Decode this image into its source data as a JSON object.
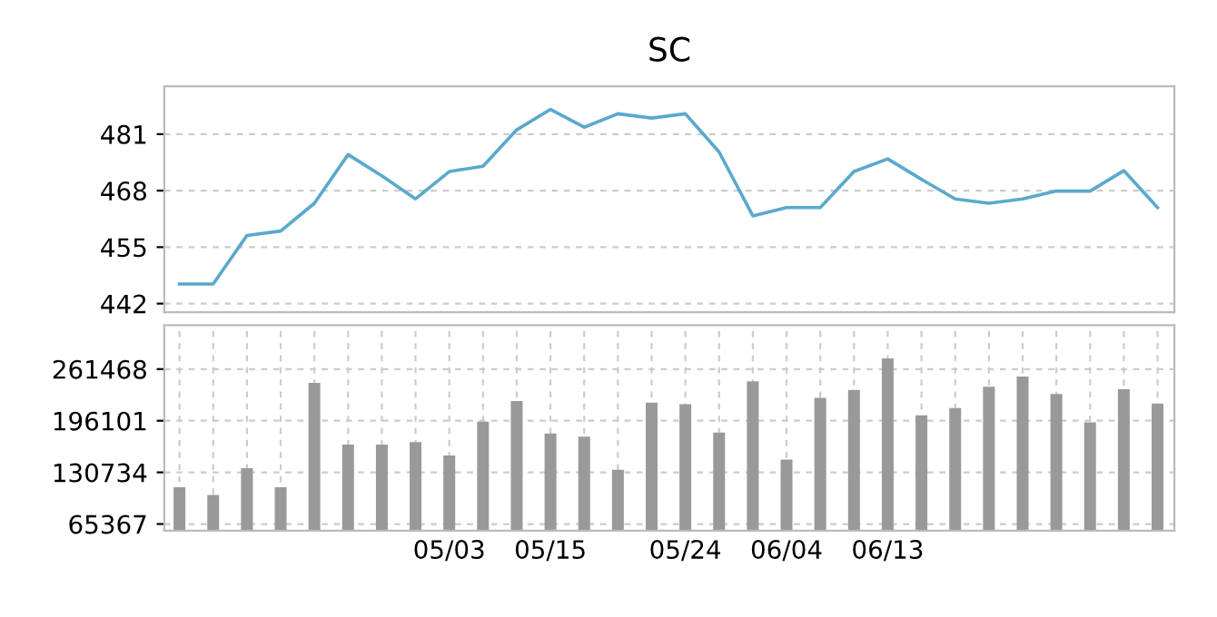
{
  "chart_data": [
    {
      "type": "line",
      "title": "SC",
      "categories": [
        null,
        null,
        null,
        null,
        null,
        null,
        null,
        null,
        null,
        null,
        null,
        null,
        null,
        null,
        null,
        null,
        null,
        null,
        null,
        null,
        null,
        null,
        null,
        null,
        null,
        null,
        null,
        null,
        null,
        null
      ],
      "series": [
        {
          "color": "#5aa9cc",
          "values": [
            446.5,
            446.5,
            457.7,
            458.7,
            465.1,
            476.3,
            471.4,
            466.1,
            472.4,
            473.6,
            482.0,
            486.7,
            482.6,
            485.7,
            484.7,
            485.7,
            476.9,
            462.2,
            464.1,
            464.1,
            472.4,
            475.3,
            470.6,
            466.1,
            465.1,
            466.1,
            467.9,
            467.9,
            472.6,
            464.1
          ]
        }
      ],
      "ylim": [
        440,
        492
      ],
      "yticks": [
        442,
        455,
        468,
        481
      ],
      "grid": "y",
      "tick_labels": "y",
      "marker": "none"
    },
    {
      "type": "bar",
      "categories": [
        null,
        null,
        null,
        null,
        null,
        null,
        null,
        null,
        "05/03",
        null,
        null,
        "05/15",
        null,
        null,
        null,
        "05/24",
        null,
        null,
        "06/04",
        null,
        null,
        "06/13",
        null,
        null,
        null,
        null,
        null,
        null,
        null,
        null
      ],
      "series": [
        {
          "color": "#999999",
          "values": [
            112000,
            102000,
            136000,
            112000,
            244000,
            166000,
            166000,
            169000,
            152000,
            195000,
            221000,
            180000,
            176000,
            134000,
            219000,
            217000,
            181000,
            246000,
            147000,
            225000,
            235000,
            275000,
            203000,
            212000,
            239000,
            252000,
            230000,
            194000,
            236000,
            218000
          ]
        }
      ],
      "ylim": [
        57000,
        317000
      ],
      "yticks": [
        65367,
        130734,
        196101,
        261468
      ],
      "grid": true
    }
  ]
}
